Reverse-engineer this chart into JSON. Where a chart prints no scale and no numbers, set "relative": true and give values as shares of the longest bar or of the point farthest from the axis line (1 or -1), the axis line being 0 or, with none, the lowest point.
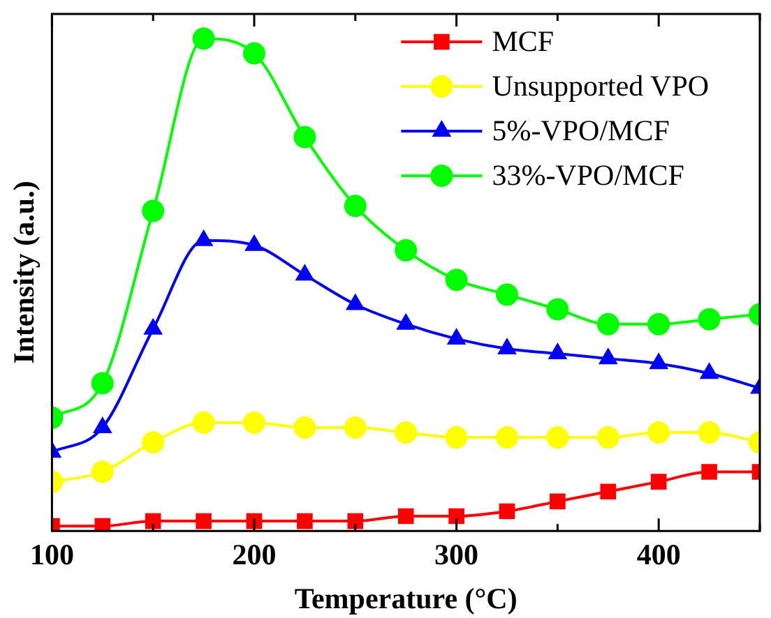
{
  "chart_data": {
    "type": "line",
    "xlabel": "Temperature (°C)",
    "ylabel": "Intensity (a.u.)",
    "relative": true,
    "x": [
      100,
      125,
      150,
      175,
      200,
      225,
      250,
      275,
      300,
      325,
      350,
      375,
      400,
      425,
      450
    ],
    "xlim": [
      100,
      450
    ],
    "xticks": [
      100,
      {
        "value": 150,
        "label": null
      },
      200,
      {
        "value": 250,
        "label": null
      },
      300,
      {
        "value": 350,
        "label": null
      },
      400,
      {
        "value": 450,
        "label": null
      }
    ],
    "grid": false,
    "legend": "top right",
    "series": [
      {
        "name": "MCF",
        "color": "#ff0000",
        "marker": "square",
        "values": [
          0.01,
          0.01,
          0.02,
          0.02,
          0.02,
          0.02,
          0.02,
          0.03,
          0.03,
          0.04,
          0.06,
          0.08,
          0.1,
          0.12,
          0.12
        ]
      },
      {
        "name": "Unsupported VPO",
        "color": "#ffff00",
        "marker": "circle",
        "values": [
          0.1,
          0.12,
          0.18,
          0.22,
          0.22,
          0.21,
          0.21,
          0.2,
          0.19,
          0.19,
          0.19,
          0.19,
          0.2,
          0.2,
          0.18
        ]
      },
      {
        "name": "5%-VPO/MCF",
        "color": "#0000ff",
        "marker": "triangle",
        "values": [
          0.16,
          0.21,
          0.41,
          0.59,
          0.58,
          0.52,
          0.46,
          0.42,
          0.39,
          0.37,
          0.36,
          0.35,
          0.34,
          0.32,
          0.29
        ]
      },
      {
        "name": "33%-VPO/MCF",
        "color": "#00ff00",
        "marker": "circle",
        "values": [
          0.23,
          0.3,
          0.65,
          1,
          0.97,
          0.8,
          0.66,
          0.57,
          0.51,
          0.48,
          0.45,
          0.42,
          0.42,
          0.43,
          0.44
        ]
      }
    ]
  }
}
